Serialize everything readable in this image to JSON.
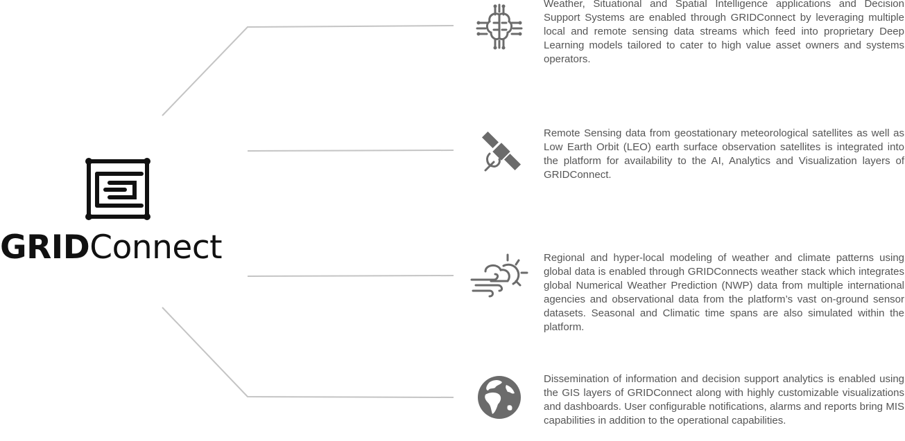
{
  "brand": {
    "name_bold": "GRID",
    "name_light": "Connect"
  },
  "features": [
    {
      "icon": "ai-brain-circuit-icon",
      "text": "Weather, Situational and Spatial Intelligence applications and Decision Support Systems are enabled through GRIDConnect by leveraging multiple local and remote sensing data streams which feed into proprietary Deep Learning models tailored to cater to high value asset owners and systems operators."
    },
    {
      "icon": "satellite-icon",
      "text": "Remote Sensing data from geostationary meteorological satellites as well as Low Earth Orbit (LEO) earth surface observation satellites is integrated into the platform for availability to the AI, Analytics and Visualization layers of GRIDConnect."
    },
    {
      "icon": "weather-cloud-sun-wind-icon",
      "text": "Regional and hyper-local modeling of weather and climate patterns using global data is enabled through GRIDConnects weather stack which integrates global Numerical Weather Prediction (NWP) data from multiple international agencies and observational data from the platform’s vast on-ground sensor datasets. Seasonal and Climatic time spans are also simulated within the platform."
    },
    {
      "icon": "globe-icon",
      "text": "Dissemination of information and decision support analytics is enabled using the GIS layers of GRIDConnect along with highly customizable visualizations and dashboards. User configurable notifications, alarms and reports bring MIS capabilities in addition to the operational capabilities."
    }
  ],
  "colors": {
    "connector": "#c4c4c4",
    "icon": "#6b6b6b",
    "text": "#555555",
    "brand": "#111111"
  }
}
